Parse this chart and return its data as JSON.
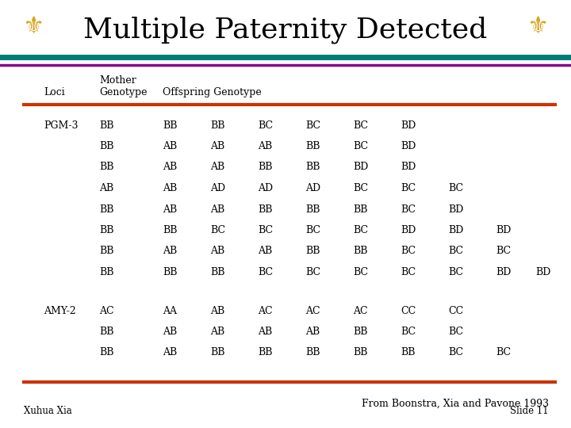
{
  "title": "Multiple Paternity Detected",
  "title_fontsize": 26,
  "background_color": "#ffffff",
  "header_teal_color": "#007B7B",
  "header_purple_color": "#880088",
  "divider_color": "#CC3300",
  "pgm3_rows": [
    [
      "PGM-3",
      "BB",
      "BB",
      "BB",
      "BC",
      "BC",
      "BC",
      "BD",
      "",
      "",
      ""
    ],
    [
      "",
      "BB",
      "AB",
      "AB",
      "AB",
      "BB",
      "BC",
      "BD",
      "",
      "",
      ""
    ],
    [
      "",
      "BB",
      "AB",
      "AB",
      "BB",
      "BB",
      "BD",
      "BD",
      "",
      "",
      ""
    ],
    [
      "",
      "AB",
      "AB",
      "AD",
      "AD",
      "AD",
      "BC",
      "BC",
      "BC",
      "",
      ""
    ],
    [
      "",
      "BB",
      "AB",
      "AB",
      "BB",
      "BB",
      "BB",
      "BC",
      "BD",
      "",
      ""
    ],
    [
      "",
      "BB",
      "BB",
      "BC",
      "BC",
      "BC",
      "BC",
      "BD",
      "BD",
      "BD",
      ""
    ],
    [
      "",
      "BB",
      "AB",
      "AB",
      "AB",
      "BB",
      "BB",
      "BC",
      "BC",
      "BC",
      ""
    ],
    [
      "",
      "BB",
      "BB",
      "BB",
      "BC",
      "BC",
      "BC",
      "BC",
      "BC",
      "BD",
      "BD"
    ]
  ],
  "amy2_rows": [
    [
      "AMY-2",
      "AC",
      "AA",
      "AB",
      "AC",
      "AC",
      "AC",
      "CC",
      "CC",
      "",
      ""
    ],
    [
      "",
      "BB",
      "AB",
      "AB",
      "AB",
      "AB",
      "BB",
      "BC",
      "BC",
      "",
      ""
    ],
    [
      "",
      "BB",
      "AB",
      "BB",
      "BB",
      "BB",
      "BB",
      "BB",
      "BC",
      "BC",
      ""
    ]
  ],
  "citation": "From Boonstra, Xia and Pavone 1993",
  "footer_left": "Xuhua Xia",
  "footer_right": "Slide 11",
  "col_xs_inches": [
    0.55,
    1.25,
    2.05,
    2.65,
    3.25,
    3.85,
    4.45,
    5.05,
    5.65,
    6.25,
    6.75
  ],
  "font_family": "serif",
  "row_fs": 9,
  "header_fs": 9
}
